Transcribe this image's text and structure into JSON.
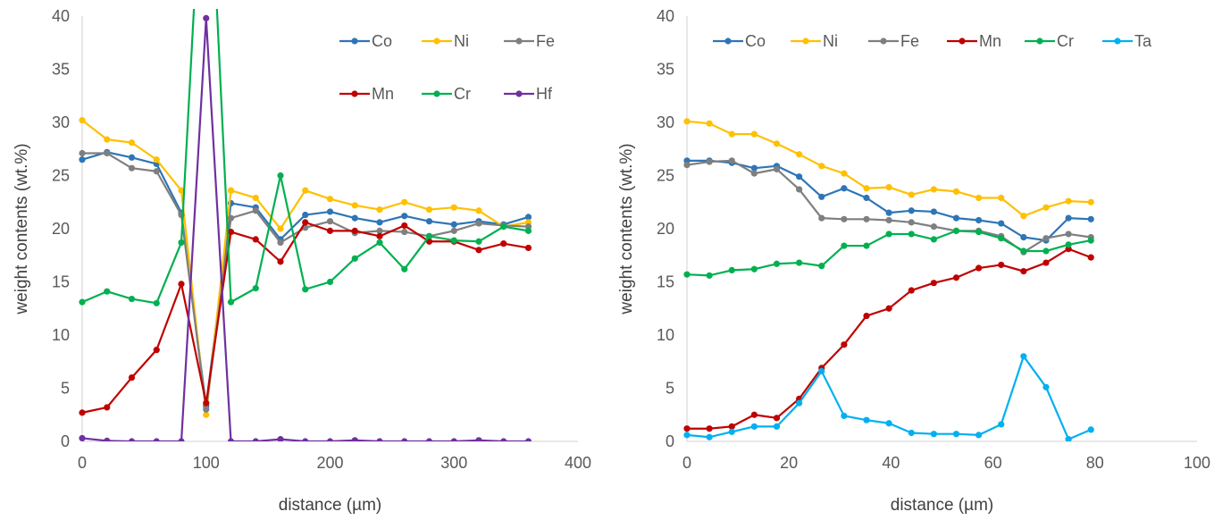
{
  "chart_data": [
    {
      "type": "line",
      "xlabel": "distance (µm)",
      "ylabel": "weight contents (wt.%)",
      "xlim": [
        0,
        400
      ],
      "ylim": [
        0,
        40
      ],
      "x_ticks": [
        "0",
        "100",
        "200",
        "300",
        "400"
      ],
      "y_ticks": [
        "0",
        "5",
        "10",
        "15",
        "20",
        "25",
        "30",
        "35",
        "40"
      ],
      "grid": false,
      "legend_position": "top-right",
      "x": [
        0,
        20,
        40,
        60,
        80,
        100,
        120,
        140,
        160,
        180,
        200,
        220,
        240,
        260,
        280,
        300,
        320,
        340,
        360
      ],
      "series": [
        {
          "name": "Co",
          "color": "#2E75B6",
          "values": [
            26.5,
            27.2,
            26.7,
            26.1,
            21.5,
            3.3,
            22.4,
            22.0,
            19.0,
            21.3,
            21.6,
            21.0,
            20.6,
            21.2,
            20.7,
            20.4,
            20.7,
            20.4,
            21.1
          ]
        },
        {
          "name": "Ni",
          "color": "#FFC000",
          "values": [
            30.2,
            28.4,
            28.1,
            26.5,
            23.6,
            2.5,
            23.6,
            22.9,
            20.0,
            23.6,
            22.8,
            22.2,
            21.8,
            22.5,
            21.8,
            22.0,
            21.7,
            20.2,
            20.6
          ]
        },
        {
          "name": "Fe",
          "color": "#7F7F7F",
          "values": [
            27.1,
            27.1,
            25.7,
            25.4,
            21.3,
            3.0,
            21.0,
            21.7,
            18.7,
            20.1,
            20.7,
            19.6,
            19.8,
            19.7,
            19.3,
            19.8,
            20.5,
            20.3,
            20.2
          ]
        },
        {
          "name": "Mn",
          "color": "#C00000",
          "values": [
            2.7,
            3.2,
            6.0,
            8.6,
            14.8,
            3.6,
            19.7,
            19.0,
            16.9,
            20.6,
            19.8,
            19.8,
            19.3,
            20.3,
            18.8,
            18.8,
            18.0,
            18.6,
            18.2
          ]
        },
        {
          "name": "Cr",
          "color": "#00B050",
          "values": [
            13.1,
            14.1,
            13.4,
            13.0,
            18.7,
            62.0,
            13.1,
            14.4,
            25.0,
            14.3,
            15.0,
            17.2,
            18.7,
            16.2,
            19.3,
            18.9,
            18.8,
            20.2,
            19.8
          ]
        },
        {
          "name": "Hf",
          "color": "#7030A0",
          "values": [
            0.3,
            0.05,
            0.0,
            0.0,
            0.0,
            39.8,
            0.0,
            0.0,
            0.2,
            0.0,
            0.0,
            0.1,
            0.0,
            0.0,
            0.0,
            0.0,
            0.1,
            0.0,
            0.0
          ]
        }
      ]
    },
    {
      "type": "line",
      "xlabel": "distance (µm)",
      "ylabel": "weight contents (wt.%)",
      "xlim": [
        0,
        100
      ],
      "ylim": [
        0,
        40
      ],
      "x_ticks": [
        "0",
        "20",
        "40",
        "60",
        "80",
        "100"
      ],
      "y_ticks": [
        "0",
        "5",
        "10",
        "15",
        "20",
        "25",
        "30",
        "35",
        "40"
      ],
      "grid": false,
      "legend_position": "top",
      "x": [
        0,
        4.4,
        8.8,
        13.2,
        17.6,
        22.0,
        26.4,
        30.8,
        35.2,
        39.6,
        44.0,
        48.4,
        52.8,
        57.2,
        61.6,
        66.0,
        70.4,
        74.8,
        79.2
      ],
      "series": [
        {
          "name": "Co",
          "color": "#2E75B6",
          "values": [
            26.4,
            26.4,
            26.2,
            25.7,
            25.9,
            24.9,
            23.0,
            23.8,
            22.9,
            21.5,
            21.7,
            21.6,
            21.0,
            20.8,
            20.5,
            19.2,
            18.9,
            21.0,
            20.9
          ]
        },
        {
          "name": "Ni",
          "color": "#FFC000",
          "values": [
            30.1,
            29.9,
            28.9,
            28.9,
            28.0,
            27.0,
            25.9,
            25.2,
            23.8,
            23.9,
            23.2,
            23.7,
            23.5,
            22.9,
            22.9,
            21.2,
            22.0,
            22.6,
            22.5
          ]
        },
        {
          "name": "Fe",
          "color": "#7F7F7F",
          "values": [
            26.0,
            26.3,
            26.4,
            25.2,
            25.6,
            23.7,
            21.0,
            20.9,
            20.9,
            20.8,
            20.6,
            20.2,
            19.8,
            19.8,
            19.3,
            17.8,
            19.1,
            19.5,
            19.2
          ]
        },
        {
          "name": "Mn",
          "color": "#C00000",
          "values": [
            1.2,
            1.2,
            1.4,
            2.5,
            2.2,
            4.0,
            6.9,
            9.1,
            11.8,
            12.5,
            14.2,
            14.9,
            15.4,
            16.3,
            16.6,
            16.0,
            16.8,
            18.1,
            17.3
          ]
        },
        {
          "name": "Cr",
          "color": "#00B050",
          "values": [
            15.7,
            15.6,
            16.1,
            16.2,
            16.7,
            16.8,
            16.5,
            18.4,
            18.4,
            19.5,
            19.5,
            19.0,
            19.8,
            19.7,
            19.1,
            17.9,
            17.9,
            18.5,
            18.9
          ]
        },
        {
          "name": "Ta",
          "color": "#00B0F0",
          "values": [
            0.6,
            0.4,
            0.9,
            1.4,
            1.4,
            3.6,
            6.6,
            2.4,
            2.0,
            1.7,
            0.8,
            0.7,
            0.7,
            0.6,
            1.6,
            8.0,
            5.1,
            0.2,
            1.1
          ]
        }
      ]
    }
  ]
}
